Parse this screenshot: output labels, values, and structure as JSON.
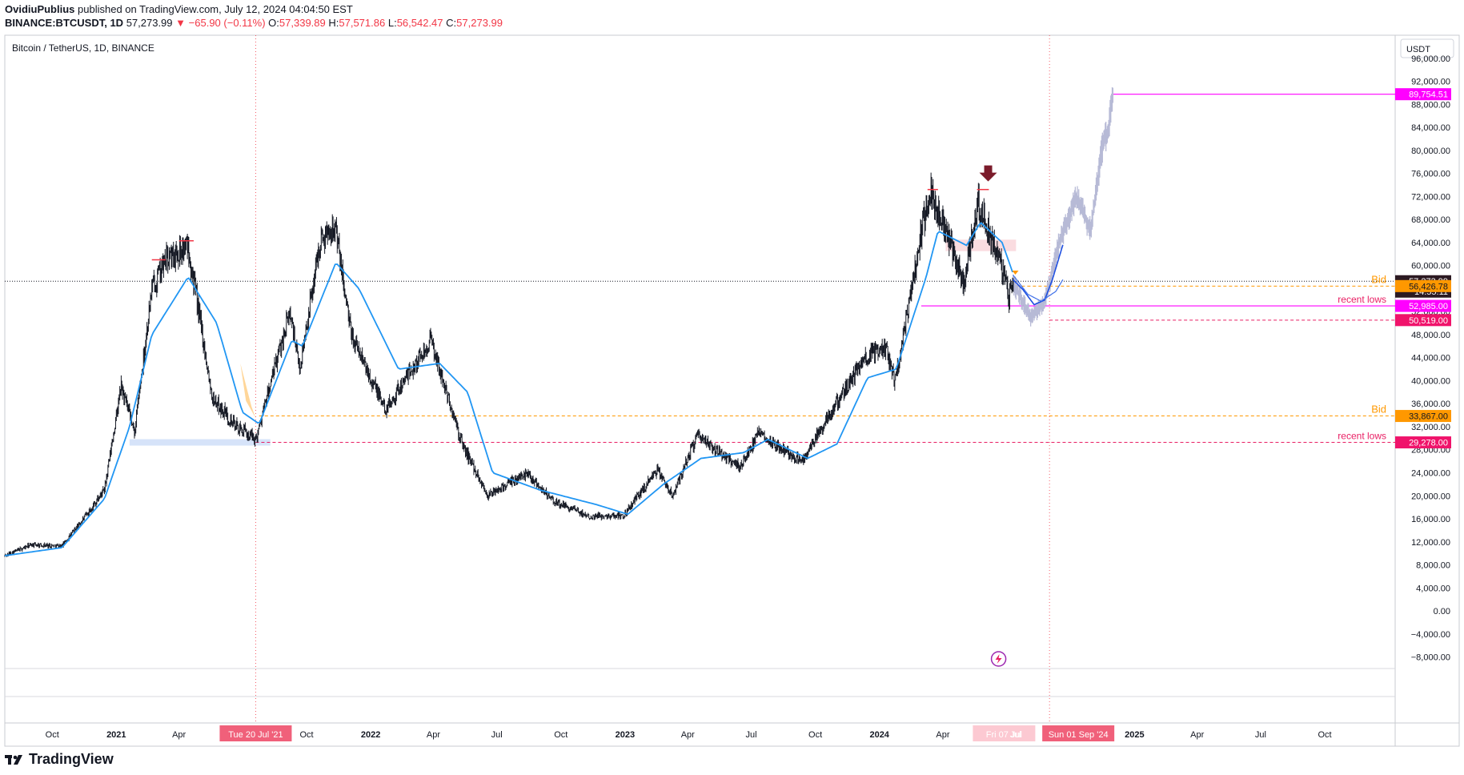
{
  "header": {
    "author": "OvidiuPublius",
    "published": "published on TradingView.com, July 12, 2024 04:04:50 EST",
    "symbol": "BINANCE:BTCUSDT, 1D",
    "last": "57,273.99",
    "change": "−65.90 (−0.11%)",
    "o_label": "O:",
    "o": "57,339.89",
    "h_label": "H:",
    "h": "57,571.86",
    "l_label": "L:",
    "l": "56,542.47",
    "c_label": "C:",
    "c": "57,273.99"
  },
  "chart_data": {
    "type": "line",
    "title": "Bitcoin / TetherUS, 1D, BINANCE",
    "currency": "USDT",
    "ylim": [
      -10000,
      100000
    ],
    "y_ticks": [
      "96,000.00",
      "92,000.00",
      "88,000.00",
      "84,000.00",
      "80,000.00",
      "76,000.00",
      "72,000.00",
      "68,000.00",
      "64,000.00",
      "60,000.00",
      "56,000.00",
      "52,000.00",
      "48,000.00",
      "44,000.00",
      "40,000.00",
      "36,000.00",
      "32,000.00",
      "28,000.00",
      "24,000.00",
      "20,000.00",
      "16,000.00",
      "12,000.00",
      "8,000.00",
      "4,000.00",
      "0.00",
      "−4,000.00",
      "−8,000.00"
    ],
    "y_tick_values": [
      96000,
      92000,
      88000,
      84000,
      80000,
      76000,
      72000,
      68000,
      64000,
      60000,
      56000,
      52000,
      48000,
      44000,
      40000,
      36000,
      32000,
      28000,
      24000,
      20000,
      16000,
      12000,
      8000,
      4000,
      0,
      -4000,
      -8000
    ],
    "x_ticks": [
      {
        "date": "2020-10-01",
        "label": "Oct",
        "bold": false
      },
      {
        "date": "2021-01-01",
        "label": "2021",
        "bold": true
      },
      {
        "date": "2021-04-01",
        "label": "Apr",
        "bold": false
      },
      {
        "date": "2021-10-01",
        "label": "Oct",
        "bold": false
      },
      {
        "date": "2022-01-01",
        "label": "2022",
        "bold": true
      },
      {
        "date": "2022-04-01",
        "label": "Apr",
        "bold": false
      },
      {
        "date": "2022-07-01",
        "label": "Jul",
        "bold": false
      },
      {
        "date": "2022-10-01",
        "label": "Oct",
        "bold": false
      },
      {
        "date": "2023-01-01",
        "label": "2023",
        "bold": true
      },
      {
        "date": "2023-04-01",
        "label": "Apr",
        "bold": false
      },
      {
        "date": "2023-07-01",
        "label": "Jul",
        "bold": false
      },
      {
        "date": "2023-10-01",
        "label": "Oct",
        "bold": false
      },
      {
        "date": "2024-01-01",
        "label": "2024",
        "bold": true
      },
      {
        "date": "2024-04-01",
        "label": "Apr",
        "bold": false
      },
      {
        "date": "2025-01-01",
        "label": "2025",
        "bold": true
      },
      {
        "date": "2025-04-01",
        "label": "Apr",
        "bold": false
      },
      {
        "date": "2025-07-01",
        "label": "Jul",
        "bold": false
      },
      {
        "date": "2025-10-01",
        "label": "Oct",
        "bold": false
      }
    ],
    "x_range": [
      "2020-07-25",
      "2026-01-10"
    ],
    "price_series": {
      "name": "",
      "dates": [
        "2020-07-25",
        "2020-09-01",
        "2020-10-15",
        "2020-11-15",
        "2020-12-15",
        "2021-01-08",
        "2021-01-27",
        "2021-02-21",
        "2021-03-13",
        "2021-04-14",
        "2021-05-19",
        "2021-06-22",
        "2021-07-20",
        "2021-09-07",
        "2021-09-21",
        "2021-10-20",
        "2021-11-10",
        "2021-12-04",
        "2022-01-22",
        "2022-03-28",
        "2022-05-12",
        "2022-06-18",
        "2022-08-14",
        "2022-09-20",
        "2022-11-09",
        "2022-12-30",
        "2023-02-16",
        "2023-03-10",
        "2023-04-14",
        "2023-06-15",
        "2023-07-13",
        "2023-09-11",
        "2023-10-24",
        "2023-12-08",
        "2024-01-11",
        "2024-01-23",
        "2024-03-05",
        "2024-03-14",
        "2024-05-01",
        "2024-05-21",
        "2024-06-24",
        "2024-07-05",
        "2024-07-11"
      ],
      "close": [
        9600,
        11500,
        11300,
        16000,
        21000,
        39000,
        31000,
        56000,
        61000,
        63500,
        37000,
        32000,
        29800,
        52000,
        42000,
        64000,
        67500,
        48000,
        35000,
        47000,
        29000,
        20000,
        24000,
        19000,
        16500,
        16600,
        24500,
        20000,
        30400,
        25000,
        31000,
        25800,
        34500,
        43500,
        46000,
        39500,
        68000,
        73000,
        57000,
        71000,
        60000,
        54500,
        57273.99
      ]
    },
    "ma_series": {
      "name": "",
      "dates": [
        "2020-07-25",
        "2020-10-15",
        "2020-12-15",
        "2021-01-20",
        "2021-02-21",
        "2021-04-14",
        "2021-05-25",
        "2021-07-01",
        "2021-07-25",
        "2021-09-10",
        "2021-09-25",
        "2021-11-12",
        "2021-12-15",
        "2022-02-10",
        "2022-04-10",
        "2022-05-20",
        "2022-06-25",
        "2022-09-01",
        "2022-11-20",
        "2023-01-05",
        "2023-02-25",
        "2023-04-20",
        "2023-06-20",
        "2023-07-25",
        "2023-09-20",
        "2023-11-01",
        "2023-12-15",
        "2024-01-25",
        "2024-03-08",
        "2024-03-25",
        "2024-05-05",
        "2024-05-25",
        "2024-06-25",
        "2024-07-11"
      ],
      "values": [
        9600,
        11000,
        19500,
        32000,
        48000,
        58000,
        50000,
        34500,
        32500,
        47000,
        46000,
        60500,
        56000,
        42000,
        43000,
        38000,
        24000,
        21000,
        18500,
        16800,
        22000,
        26500,
        27500,
        29800,
        26500,
        29000,
        40500,
        42000,
        58000,
        66000,
        63500,
        67500,
        64000,
        58500
      ]
    },
    "projection_curve": {
      "dates": [
        "2024-07-11",
        "2024-07-25",
        "2024-08-10",
        "2024-08-25",
        "2024-09-05",
        "2024-09-20"
      ],
      "values": [
        57500,
        55800,
        53200,
        54000,
        57500,
        63500
      ]
    },
    "ma_projection": {
      "dates": [
        "2024-07-11",
        "2024-08-01",
        "2024-08-20",
        "2024-09-10",
        "2024-09-20"
      ],
      "values": [
        58300,
        55000,
        53800,
        55500,
        57500
      ]
    },
    "ghost_path": {
      "dates": [
        "2024-07-11",
        "2024-08-05",
        "2024-08-25",
        "2024-09-15",
        "2024-10-10",
        "2024-10-30",
        "2024-11-15",
        "2024-11-25",
        "2024-12-01"
      ],
      "values": [
        57000,
        51000,
        53500,
        64000,
        72000,
        66000,
        80000,
        84000,
        89754.51
      ]
    },
    "levels": [
      {
        "value": 57273.99,
        "label": "57,273.99",
        "sub": "14:55:11",
        "bg": "#2c1a22",
        "fg": "#ffffff",
        "from": "2020-07-25",
        "style": "dotted",
        "color": "#131722",
        "annotation": ""
      },
      {
        "value": 56426.78,
        "label": "56,426.78",
        "bg": "#ff9800",
        "fg": "#131722",
        "from": "2024-07-15",
        "style": "dashed",
        "color": "#ff9800",
        "annotation": "Bid"
      },
      {
        "value": 52985.0,
        "label": "52,985.00",
        "bg": "#ff00ff",
        "fg": "#ffffff",
        "from": "2024-03-01",
        "style": "solid",
        "color": "#ff00ff",
        "annotation": "recent lows"
      },
      {
        "value": 50519.0,
        "label": "50,519.00",
        "bg": "#f0136b",
        "fg": "#ffffff",
        "from": "2024-09-01",
        "style": "dashed",
        "color": "#e91e63",
        "annotation": ""
      },
      {
        "value": 89754.51,
        "label": "89,754.51",
        "bg": "#ff00ff",
        "fg": "#ffffff",
        "from": "2024-12-01",
        "style": "solid",
        "color": "#ff00ff",
        "annotation": ""
      },
      {
        "value": 33867.0,
        "label": "33,867.00",
        "bg": "#ff9800",
        "fg": "#131722",
        "from": "2021-07-25",
        "style": "dashed",
        "color": "#ff9800",
        "annotation": "Bid"
      },
      {
        "value": 29278.0,
        "label": "29,278.00",
        "bg": "#f0136b",
        "fg": "#ffffff",
        "from": "2021-07-20",
        "style": "dashed",
        "color": "#e91e63",
        "annotation": "recent lows"
      }
    ],
    "crosshair_dates": [
      {
        "date": "2021-07-20",
        "label": "Tue 20 Jul '21",
        "bg": "#f0607a"
      },
      {
        "date": "2024-07-07",
        "label": "Fri 07 Jul",
        "bg": "#fcc9d2"
      },
      {
        "date": "2024-09-01",
        "label": "Sun 01 Sep '24",
        "bg": "#f0607a"
      }
    ],
    "x_overlap_label": "Jul",
    "grid": false,
    "legend": "none"
  },
  "footer": {
    "brand": "TradingView"
  },
  "colors": {
    "candle": "#131722",
    "ma": "#2196f3",
    "ghost": "#b7bad6",
    "arrow": "#7b1b2b"
  }
}
